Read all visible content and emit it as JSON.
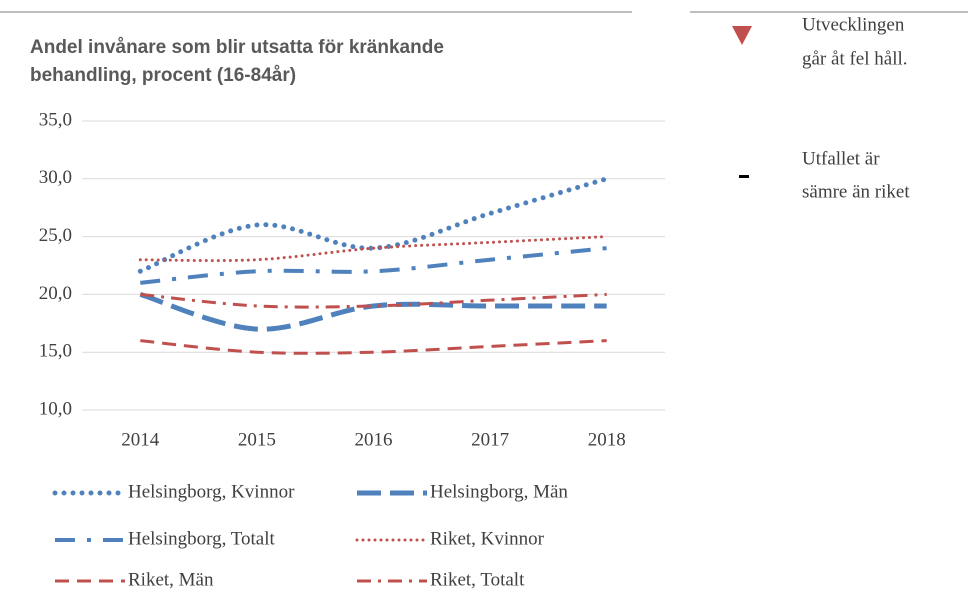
{
  "chart_data": {
    "type": "line",
    "title": [
      "Andel invånare som blir utsatta för kränkande",
      "behandling, procent (16-84år)"
    ],
    "categories": [
      "2014",
      "2015",
      "2016",
      "2017",
      "2018"
    ],
    "series": [
      {
        "name": "Helsingborg, Kvinnor",
        "color": "#4f81bd",
        "values": [
          22,
          26,
          24,
          27,
          30
        ]
      },
      {
        "name": "Helsingborg, Män",
        "color": "#4f81bd",
        "values": [
          20,
          17,
          19,
          19,
          19
        ]
      },
      {
        "name": "Helsingborg, Totalt",
        "color": "#4f81bd",
        "values": [
          21,
          22,
          22,
          23,
          24
        ]
      },
      {
        "name": "Riket, Kvinnor",
        "color": "#c0504d",
        "values": [
          23,
          23,
          24,
          24.5,
          25
        ]
      },
      {
        "name": "Riket, Män",
        "color": "#c0504d",
        "values": [
          16,
          15,
          15,
          15.5,
          16
        ]
      },
      {
        "name": "Riket, Totalt",
        "color": "#c0504d",
        "values": [
          20,
          19,
          19,
          19.5,
          20
        ]
      }
    ],
    "ylim": [
      10,
      35
    ],
    "yticks": [
      {
        "value": 10,
        "label": "10,0"
      },
      {
        "value": 15,
        "label": "15,0"
      },
      {
        "value": 20,
        "label": "20,0"
      },
      {
        "value": 25,
        "label": "25,0"
      },
      {
        "value": 30,
        "label": "30,0"
      },
      {
        "value": 35,
        "label": "35,0"
      }
    ],
    "grid": true,
    "annotations": [
      {
        "lines": [
          "Utvecklingen",
          "går åt fel håll."
        ]
      },
      {
        "lines": [
          "Utfallet är",
          "sämre än riket"
        ]
      }
    ]
  }
}
